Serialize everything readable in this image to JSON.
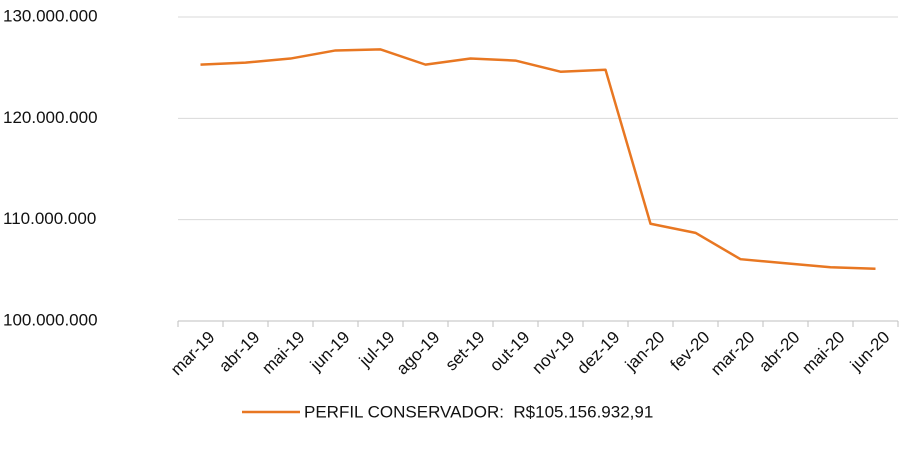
{
  "chart_data": {
    "type": "line",
    "categories": [
      "mar-19",
      "abr-19",
      "mai-19",
      "jun-19",
      "jul-19",
      "ago-19",
      "set-19",
      "out-19",
      "nov-19",
      "dez-19",
      "jan-20",
      "fev-20",
      "mar-20",
      "abr-20",
      "mai-20",
      "jun-20"
    ],
    "series": [
      {
        "name": "PERFIL CONSERVADOR:  R$105.156.932,91",
        "color": "#e87722",
        "values": [
          125300000,
          125500000,
          125900000,
          126700000,
          126800000,
          125300000,
          125900000,
          125700000,
          124600000,
          124800000,
          109600000,
          108700000,
          106100000,
          105700000,
          105300000,
          105156932.91
        ]
      }
    ],
    "ylim": [
      100000000,
      130000000
    ],
    "yticks": [
      {
        "value": 100000000,
        "label": "100.000.000"
      },
      {
        "value": 110000000,
        "label": "110.000.000"
      },
      {
        "value": 120000000,
        "label": "120.000.000"
      },
      {
        "value": 130000000,
        "label": "130.000.000"
      }
    ],
    "grid": true,
    "legend": "bottom"
  }
}
